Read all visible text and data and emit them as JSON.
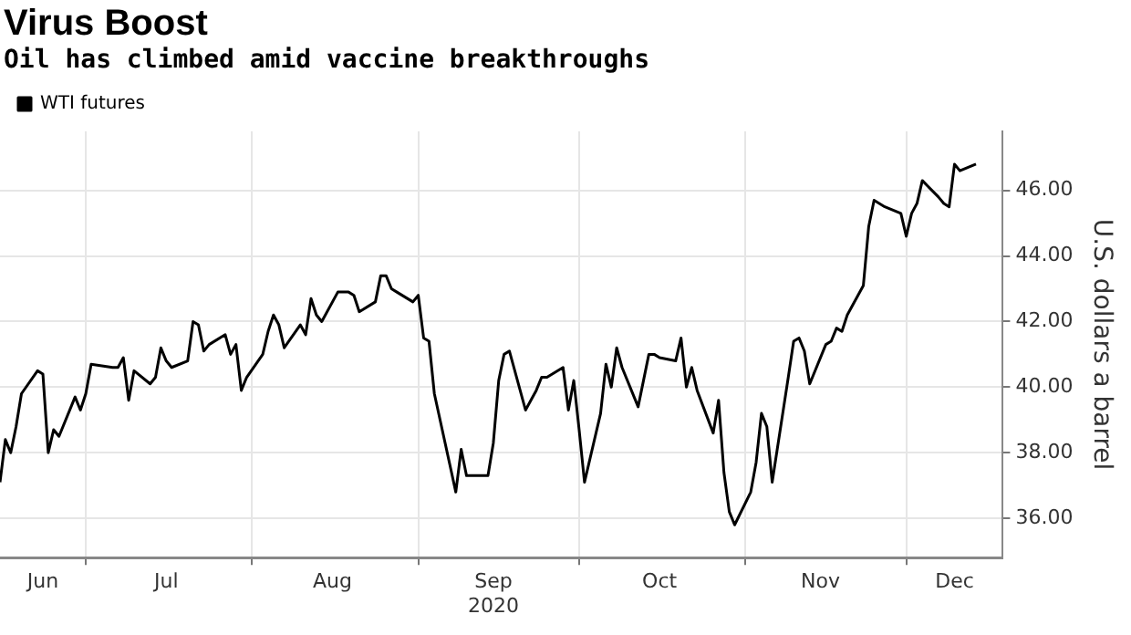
{
  "chart_data": {
    "type": "line",
    "title": "Virus Boost",
    "subtitle": "Oil has climbed amid vaccine breakthroughs",
    "ylabel": "U.S. dollars a barrel",
    "legend": "top left",
    "grid": true,
    "marker": "none",
    "line_style": "solid",
    "xlim": [
      "2020-06-15",
      "2020-12-19"
    ],
    "xticks": [
      {
        "value": "2020-06-23",
        "label": "Jun"
      },
      {
        "value": "2020-07-01",
        "label": null
      },
      {
        "value": "2020-07-16",
        "label": "Jul"
      },
      {
        "value": "2020-08-01",
        "label": null
      },
      {
        "value": "2020-08-16",
        "label": "Aug"
      },
      {
        "value": "2020-09-01",
        "label": null
      },
      {
        "value": "2020-09-15",
        "label": "Sep\n2020"
      },
      {
        "value": "2020-10-01",
        "label": null
      },
      {
        "value": "2020-10-16",
        "label": "Oct"
      },
      {
        "value": "2020-11-01",
        "label": null
      },
      {
        "value": "2020-11-15",
        "label": "Nov"
      },
      {
        "value": "2020-12-01",
        "label": null
      },
      {
        "value": "2020-12-10",
        "label": "Dec"
      }
    ],
    "ylim": [
      34.8,
      47.8
    ],
    "yticks": [
      {
        "value": 36,
        "label": "36.00"
      },
      {
        "value": 38,
        "label": "38.00"
      },
      {
        "value": 40,
        "label": "40.00"
      },
      {
        "value": 42,
        "label": "42.00"
      },
      {
        "value": 44,
        "label": "44.00"
      },
      {
        "value": 46,
        "label": "46.00"
      }
    ],
    "x": [
      "2020-06-15",
      "2020-06-16",
      "2020-06-17",
      "2020-06-18",
      "2020-06-19",
      "2020-06-22",
      "2020-06-23",
      "2020-06-24",
      "2020-06-25",
      "2020-06-26",
      "2020-06-29",
      "2020-06-30",
      "2020-07-01",
      "2020-07-02",
      "2020-07-06",
      "2020-07-07",
      "2020-07-08",
      "2020-07-09",
      "2020-07-10",
      "2020-07-13",
      "2020-07-14",
      "2020-07-15",
      "2020-07-16",
      "2020-07-17",
      "2020-07-20",
      "2020-07-21",
      "2020-07-22",
      "2020-07-23",
      "2020-07-24",
      "2020-07-27",
      "2020-07-28",
      "2020-07-29",
      "2020-07-30",
      "2020-07-31",
      "2020-08-03",
      "2020-08-04",
      "2020-08-05",
      "2020-08-06",
      "2020-08-07",
      "2020-08-10",
      "2020-08-11",
      "2020-08-12",
      "2020-08-13",
      "2020-08-14",
      "2020-08-17",
      "2020-08-18",
      "2020-08-19",
      "2020-08-20",
      "2020-08-21",
      "2020-08-24",
      "2020-08-25",
      "2020-08-26",
      "2020-08-27",
      "2020-08-28",
      "2020-08-31",
      "2020-09-01",
      "2020-09-02",
      "2020-09-03",
      "2020-09-04",
      "2020-09-08",
      "2020-09-09",
      "2020-09-10",
      "2020-09-11",
      "2020-09-14",
      "2020-09-15",
      "2020-09-16",
      "2020-09-17",
      "2020-09-18",
      "2020-09-21",
      "2020-09-22",
      "2020-09-23",
      "2020-09-24",
      "2020-09-25",
      "2020-09-28",
      "2020-09-29",
      "2020-09-30",
      "2020-10-01",
      "2020-10-02",
      "2020-10-05",
      "2020-10-06",
      "2020-10-07",
      "2020-10-08",
      "2020-10-09",
      "2020-10-12",
      "2020-10-13",
      "2020-10-14",
      "2020-10-15",
      "2020-10-16",
      "2020-10-19",
      "2020-10-20",
      "2020-10-21",
      "2020-10-22",
      "2020-10-23",
      "2020-10-26",
      "2020-10-27",
      "2020-10-28",
      "2020-10-29",
      "2020-10-30",
      "2020-11-02",
      "2020-11-03",
      "2020-11-04",
      "2020-11-05",
      "2020-11-06",
      "2020-11-09",
      "2020-11-10",
      "2020-11-11",
      "2020-11-12",
      "2020-11-13",
      "2020-11-16",
      "2020-11-17",
      "2020-11-18",
      "2020-11-19",
      "2020-11-20",
      "2020-11-23",
      "2020-11-24",
      "2020-11-25",
      "2020-11-27",
      "2020-11-30",
      "2020-12-01",
      "2020-12-02",
      "2020-12-03",
      "2020-12-04",
      "2020-12-07",
      "2020-12-08",
      "2020-12-09",
      "2020-12-10",
      "2020-12-11",
      "2020-12-14"
    ],
    "series": [
      {
        "name": "WTI futures",
        "color": "#000000",
        "values": [
          37.1,
          38.4,
          38.0,
          38.8,
          39.8,
          40.5,
          40.4,
          38.0,
          38.7,
          38.5,
          39.7,
          39.3,
          39.8,
          40.7,
          40.6,
          40.6,
          40.9,
          39.6,
          40.5,
          40.1,
          40.3,
          41.2,
          40.8,
          40.6,
          40.8,
          42.0,
          41.9,
          41.1,
          41.3,
          41.6,
          41.0,
          41.3,
          39.9,
          40.3,
          41.0,
          41.7,
          42.2,
          41.9,
          41.2,
          41.9,
          41.6,
          42.7,
          42.2,
          42.0,
          42.9,
          42.9,
          42.9,
          42.8,
          42.3,
          42.6,
          43.4,
          43.4,
          43.0,
          42.9,
          42.6,
          42.8,
          41.5,
          41.4,
          39.8,
          36.8,
          38.1,
          37.3,
          37.3,
          37.3,
          38.3,
          40.2,
          41.0,
          41.1,
          39.3,
          39.6,
          39.9,
          40.3,
          40.3,
          40.6,
          39.3,
          40.2,
          38.7,
          37.1,
          39.2,
          40.7,
          40.0,
          41.2,
          40.6,
          39.4,
          40.2,
          41.0,
          41.0,
          40.9,
          40.8,
          41.5,
          40.0,
          40.6,
          39.9,
          38.6,
          39.6,
          37.4,
          36.2,
          35.8,
          36.8,
          37.7,
          39.2,
          38.8,
          37.1,
          40.3,
          41.4,
          41.5,
          41.1,
          40.1,
          41.3,
          41.4,
          41.8,
          41.7,
          42.2,
          43.1,
          44.9,
          45.7,
          45.5,
          45.3,
          44.6,
          45.3,
          45.6,
          46.3,
          45.8,
          45.6,
          45.5,
          46.8,
          46.6,
          46.8
        ]
      }
    ]
  }
}
